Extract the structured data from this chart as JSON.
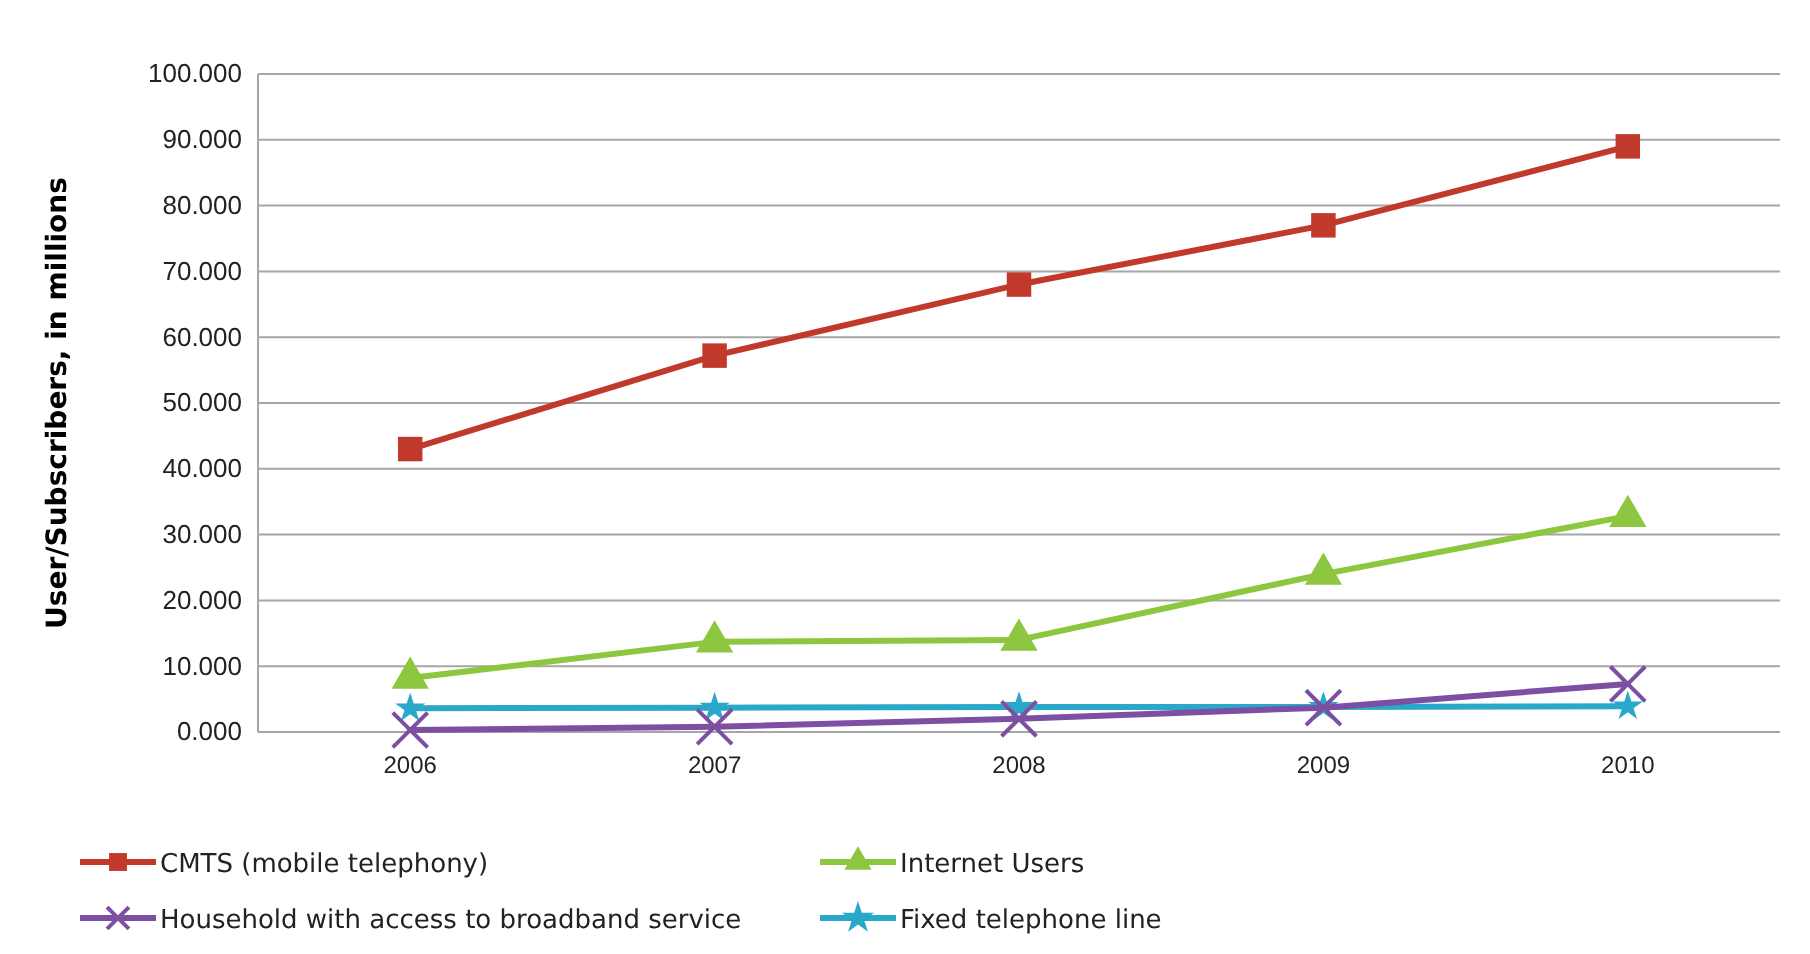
{
  "chart_data": {
    "type": "line",
    "ylabel": "User/Subscribers, in millions",
    "categories": [
      "2006",
      "2007",
      "2008",
      "2009",
      "2010"
    ],
    "series": [
      {
        "name": "CMTS (mobile telephony)",
        "color": "#c0392b",
        "marker": "square",
        "values": [
          43,
          57.2,
          68,
          77,
          89
        ]
      },
      {
        "name": "Internet Users",
        "color": "#8dc63f",
        "marker": "triangle",
        "values": [
          8.2,
          13.7,
          14,
          24,
          32.8
        ]
      },
      {
        "name": "Household with access to broadband service",
        "color": "#7d4fa3",
        "marker": "cross",
        "values": [
          0.3,
          0.8,
          2,
          3.7,
          7.3
        ]
      },
      {
        "name": "Fixed telephone line",
        "color": "#29a8c9",
        "marker": "star",
        "values": [
          3.6,
          3.7,
          3.8,
          3.8,
          3.9
        ]
      }
    ],
    "ylim": [
      0,
      100
    ],
    "yticks": [
      {
        "value": 0,
        "label": "0.000"
      },
      {
        "value": 10,
        "label": "10.000"
      },
      {
        "value": 20,
        "label": "20.000"
      },
      {
        "value": 30,
        "label": "30.000"
      },
      {
        "value": 40,
        "label": "40.000"
      },
      {
        "value": 50,
        "label": "50.000"
      },
      {
        "value": 60,
        "label": "60.000"
      },
      {
        "value": 70,
        "label": "70.000"
      },
      {
        "value": 80,
        "label": "80.000"
      },
      {
        "value": 90,
        "label": "90.000"
      },
      {
        "value": 100,
        "label": "100.000"
      }
    ],
    "grid": "y",
    "legend": "bottom",
    "line_style": "solid"
  }
}
